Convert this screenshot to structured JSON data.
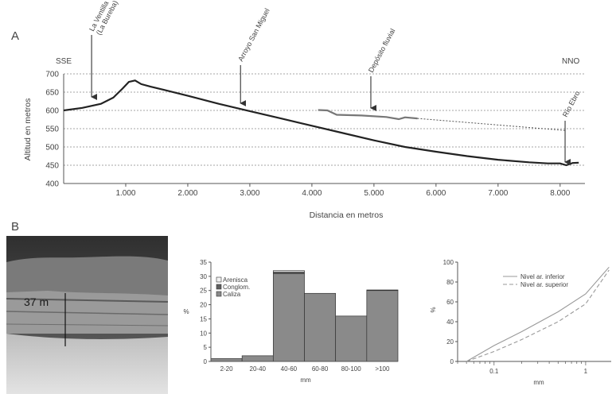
{
  "panels": {
    "a": "A",
    "b": "B"
  },
  "chart_data": [
    {
      "type": "line",
      "ylabel": "Altitud en metros",
      "xlabel": "Distancia en metros",
      "ylim": [
        400,
        700
      ],
      "xlim": [
        0,
        8400
      ],
      "yticks": [
        "700",
        "650",
        "600",
        "550",
        "500",
        "450",
        "400"
      ],
      "xticks": [
        "1.000",
        "2.000",
        "3.000",
        "4.000",
        "5.000",
        "6.000",
        "7.000",
        "8.000"
      ],
      "grid": "horizontal dashed",
      "corner_labels": {
        "left": "SSE",
        "right": "NNO"
      },
      "series": [
        {
          "x": [
            0,
            300,
            600,
            800,
            950,
            1050,
            1150,
            1250,
            1400,
            1600,
            2000,
            2500,
            3000,
            3500,
            4000,
            4500,
            5000,
            5500,
            6000,
            6500,
            7000,
            7500,
            7800,
            8000,
            8100,
            8200,
            8300
          ],
          "y": [
            600,
            607,
            618,
            635,
            660,
            678,
            682,
            672,
            665,
            657,
            640,
            618,
            598,
            578,
            558,
            538,
            518,
            500,
            487,
            475,
            465,
            458,
            455,
            455,
            450,
            456,
            457
          ]
        },
        {
          "x": [
            4100,
            4250,
            4400,
            4800,
            5200,
            5400,
            5500,
            5700
          ],
          "y": [
            601,
            600,
            588,
            586,
            582,
            576,
            581,
            578
          ]
        },
        {
          "x": [
            5700,
            8100
          ],
          "y": [
            578,
            545
          ]
        }
      ],
      "annotations": [
        {
          "label_lines": [
            "La Ventilla",
            "(La Bureba)"
          ],
          "x": 450,
          "y_tip": 620
        },
        {
          "label_lines": [
            "Arroyo San Miguel"
          ],
          "x": 2850,
          "y_tip": 605
        },
        {
          "label_lines": [
            "Depósito fluvial"
          ],
          "x": 4950,
          "y_tip": 590
        },
        {
          "label_lines": [
            "Río Ebro"
          ],
          "x": 8080,
          "y_tip": 455
        }
      ]
    },
    {
      "type": "bar",
      "categories": [
        "2-20",
        "20-40",
        "40-60",
        "60-80",
        "80-100",
        ">100"
      ],
      "series": [
        {
          "name": "Caliza",
          "values": [
            1,
            2,
            31,
            24,
            16,
            25
          ],
          "color": "#8a8a8a"
        },
        {
          "name": "Conglom.",
          "values": [
            0,
            0,
            0.5,
            0,
            0,
            0.2
          ],
          "color": "#5f5f5f"
        },
        {
          "name": "Arenisca",
          "values": [
            0,
            0,
            0.5,
            0,
            0,
            0
          ],
          "color": "#f2f2f2"
        }
      ],
      "xlabel": "mm",
      "ylabel": "%",
      "ylim": [
        0,
        35
      ],
      "yticks": [
        "0",
        "5",
        "10",
        "15",
        "20",
        "25",
        "30",
        "35"
      ]
    },
    {
      "type": "line",
      "xscale": "log",
      "xlabel": "mm",
      "ylabel": "%",
      "ylim": [
        0,
        100
      ],
      "xlim": [
        0.04,
        1.9
      ],
      "yticks": [
        "0",
        "20",
        "40",
        "60",
        "80",
        "100"
      ],
      "xticks": [
        "0.1",
        "1"
      ],
      "legend": "top-right",
      "series": [
        {
          "name": "Nivel ar. inferior",
          "style": "solid",
          "x": [
            0.05,
            0.1,
            0.2,
            0.5,
            1.0,
            1.8
          ],
          "y": [
            0,
            16,
            30,
            50,
            68,
            95
          ]
        },
        {
          "name": "Nivel ar. superior",
          "style": "dashed",
          "x": [
            0.05,
            0.1,
            0.2,
            0.5,
            1.0,
            1.8
          ],
          "y": [
            0,
            10,
            22,
            40,
            58,
            92
          ]
        }
      ]
    }
  ],
  "photo": {
    "scale_label": "37 m"
  }
}
